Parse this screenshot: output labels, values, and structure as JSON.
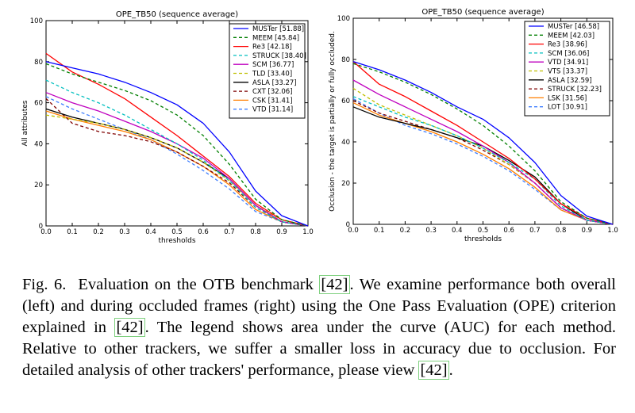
{
  "chart_data": [
    {
      "type": "line",
      "title": "OPE_TB50 (sequence average)",
      "xlabel": "thresholds",
      "ylabel": "All attributes",
      "xlim": [
        0.0,
        1.0
      ],
      "ylim": [
        0,
        100
      ],
      "xticks": [
        "0.0",
        "0.1",
        "0.2",
        "0.3",
        "0.4",
        "0.5",
        "0.6",
        "0.7",
        "0.8",
        "0.9",
        "1.0"
      ],
      "yticks": [
        "0",
        "20",
        "40",
        "60",
        "80",
        "100"
      ],
      "legend_position": "top-right",
      "x": [
        0.0,
        0.1,
        0.2,
        0.3,
        0.4,
        0.5,
        0.6,
        0.7,
        0.8,
        0.9,
        1.0
      ],
      "series": [
        {
          "name": "MUSTer [51.88]",
          "color": "#0000ff",
          "dash": "solid",
          "values": [
            80,
            77,
            74,
            70,
            65,
            59,
            50,
            36,
            17,
            5,
            0
          ]
        },
        {
          "name": "MEEM [45.84]",
          "color": "#007f00",
          "dash": "dashed",
          "values": [
            79,
            74,
            70,
            66,
            61,
            54,
            44,
            30,
            13,
            3,
            0
          ]
        },
        {
          "name": "Re3 [42.18]",
          "color": "#ff0000",
          "dash": "solid",
          "values": [
            84,
            75,
            69,
            62,
            53,
            44,
            34,
            24,
            11,
            3,
            0
          ]
        },
        {
          "name": "STRUCK [38.40]",
          "color": "#00bfbf",
          "dash": "dashed",
          "values": [
            71,
            65,
            60,
            54,
            47,
            40,
            32,
            22,
            9,
            2,
            0
          ]
        },
        {
          "name": "SCM [36.77]",
          "color": "#bf00bf",
          "dash": "solid",
          "values": [
            65,
            60,
            56,
            51,
            46,
            40,
            33,
            23,
            10,
            2,
            0
          ]
        },
        {
          "name": "TLD [33.40]",
          "color": "#bfbf00",
          "dash": "dashed",
          "values": [
            54,
            52,
            50,
            47,
            43,
            38,
            31,
            22,
            10,
            3,
            0
          ]
        },
        {
          "name": "ASLA [33.27]",
          "color": "#000000",
          "dash": "solid",
          "values": [
            57,
            53,
            50,
            47,
            43,
            38,
            31,
            23,
            10,
            2,
            0
          ]
        },
        {
          "name": "CXT [32.06]",
          "color": "#7f0000",
          "dash": "dashed",
          "values": [
            62,
            50,
            46,
            44,
            41,
            36,
            29,
            21,
            9,
            2,
            0
          ]
        },
        {
          "name": "CSK [31.41]",
          "color": "#ff7f00",
          "dash": "solid",
          "values": [
            56,
            52,
            49,
            46,
            42,
            36,
            29,
            20,
            8,
            2,
            0
          ]
        },
        {
          "name": "VTD [31.14]",
          "color": "#3f7fff",
          "dash": "dashed",
          "values": [
            63,
            57,
            52,
            47,
            42,
            35,
            27,
            18,
            7,
            2,
            0
          ]
        }
      ]
    },
    {
      "type": "line",
      "title": "OPE_TB50 (sequence average)",
      "xlabel": "thresholds",
      "ylabel": "Occlusion - the target is partially or fully occluded.",
      "xlim": [
        0.0,
        1.0
      ],
      "ylim": [
        0,
        100
      ],
      "xticks": [
        "0.0",
        "0.1",
        "0.2",
        "0.3",
        "0.4",
        "0.5",
        "0.6",
        "0.7",
        "0.8",
        "0.9",
        "1.0"
      ],
      "yticks": [
        "0",
        "20",
        "40",
        "60",
        "80",
        "100"
      ],
      "legend_position": "top-right",
      "x": [
        0.0,
        0.1,
        0.2,
        0.3,
        0.4,
        0.5,
        0.6,
        0.7,
        0.8,
        0.9,
        1.0
      ],
      "series": [
        {
          "name": "MUSTer [46.58]",
          "color": "#0000ff",
          "dash": "solid",
          "values": [
            79,
            75,
            70,
            64,
            57,
            51,
            42,
            30,
            14,
            4,
            0
          ]
        },
        {
          "name": "MEEM [42.03]",
          "color": "#007f00",
          "dash": "dashed",
          "values": [
            78,
            74,
            69,
            63,
            56,
            48,
            38,
            26,
            11,
            3,
            0
          ]
        },
        {
          "name": "Re3 [38.96]",
          "color": "#ff0000",
          "dash": "solid",
          "values": [
            79,
            68,
            62,
            55,
            48,
            40,
            32,
            22,
            10,
            3,
            0
          ]
        },
        {
          "name": "SCM [36.06]",
          "color": "#00bfbf",
          "dash": "dashed",
          "values": [
            62,
            57,
            52,
            48,
            43,
            37,
            30,
            22,
            9,
            2,
            0
          ]
        },
        {
          "name": "VTD [34.91]",
          "color": "#bf00bf",
          "dash": "solid",
          "values": [
            70,
            63,
            57,
            51,
            45,
            38,
            30,
            20,
            8,
            2,
            0
          ]
        },
        {
          "name": "VTS [33.37]",
          "color": "#bfbf00",
          "dash": "dashed",
          "values": [
            66,
            58,
            53,
            48,
            43,
            37,
            29,
            20,
            8,
            2,
            0
          ]
        },
        {
          "name": "ASLA [32.59]",
          "color": "#000000",
          "dash": "solid",
          "values": [
            57,
            52,
            49,
            46,
            42,
            38,
            31,
            23,
            10,
            2,
            0
          ]
        },
        {
          "name": "STRUCK [32.23]",
          "color": "#7f0000",
          "dash": "dashed",
          "values": [
            60,
            54,
            50,
            46,
            42,
            36,
            29,
            20,
            8,
            2,
            0
          ]
        },
        {
          "name": "LSK [31.56]",
          "color": "#ff7f00",
          "dash": "solid",
          "values": [
            59,
            53,
            49,
            45,
            40,
            34,
            27,
            18,
            7,
            2,
            0
          ]
        },
        {
          "name": "LOT [30.91]",
          "color": "#3f7fff",
          "dash": "dashed",
          "values": [
            61,
            54,
            48,
            44,
            39,
            33,
            26,
            17,
            7,
            2,
            0
          ]
        }
      ]
    }
  ],
  "caption": {
    "fig_label": "Fig. 6.",
    "part1": "Evaluation on the OTB benchmark ",
    "ref1": "[42]",
    "part2": ". We examine performance both overall (left) and during occluded frames (right) using the One Pass Evaluation (OPE) criterion explained in ",
    "ref2": "[42]",
    "part3": ". The legend shows area under the curve (AUC) for each method. Relative to other trackers, we suffer a smaller loss in accuracy due to occlusion. For detailed analysis of other trackers' performance, please view ",
    "ref3": "[42]",
    "part4": "."
  }
}
